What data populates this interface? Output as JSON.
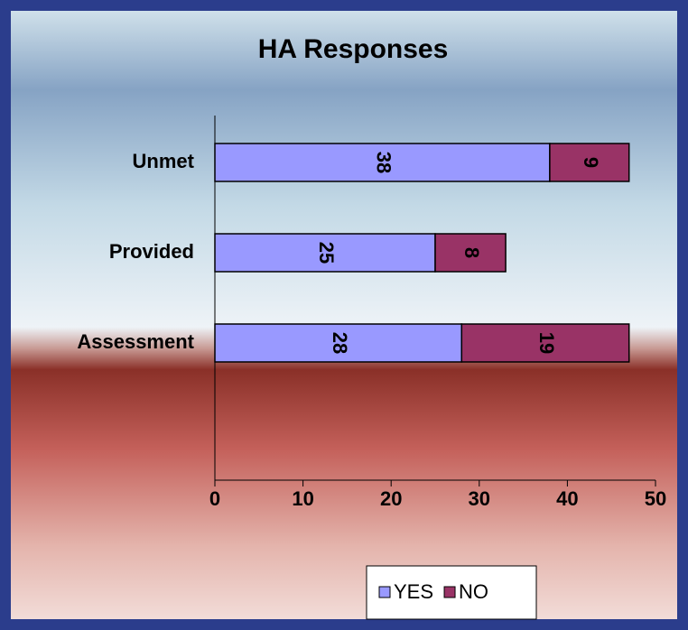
{
  "chart_data": {
    "type": "stacked_bar_horizontal",
    "title": "HA Responses",
    "categories": [
      "Unmet",
      "Provided",
      "Assessment"
    ],
    "series": [
      {
        "name": "YES",
        "color": "#9999ff",
        "values": [
          38,
          25,
          28
        ]
      },
      {
        "name": "NO",
        "color": "#993366",
        "values": [
          9,
          8,
          19
        ]
      }
    ],
    "xlim": [
      0,
      50
    ],
    "xticks": [
      0,
      10,
      20,
      30,
      40,
      50
    ],
    "grid": false,
    "legend": "bottom"
  }
}
